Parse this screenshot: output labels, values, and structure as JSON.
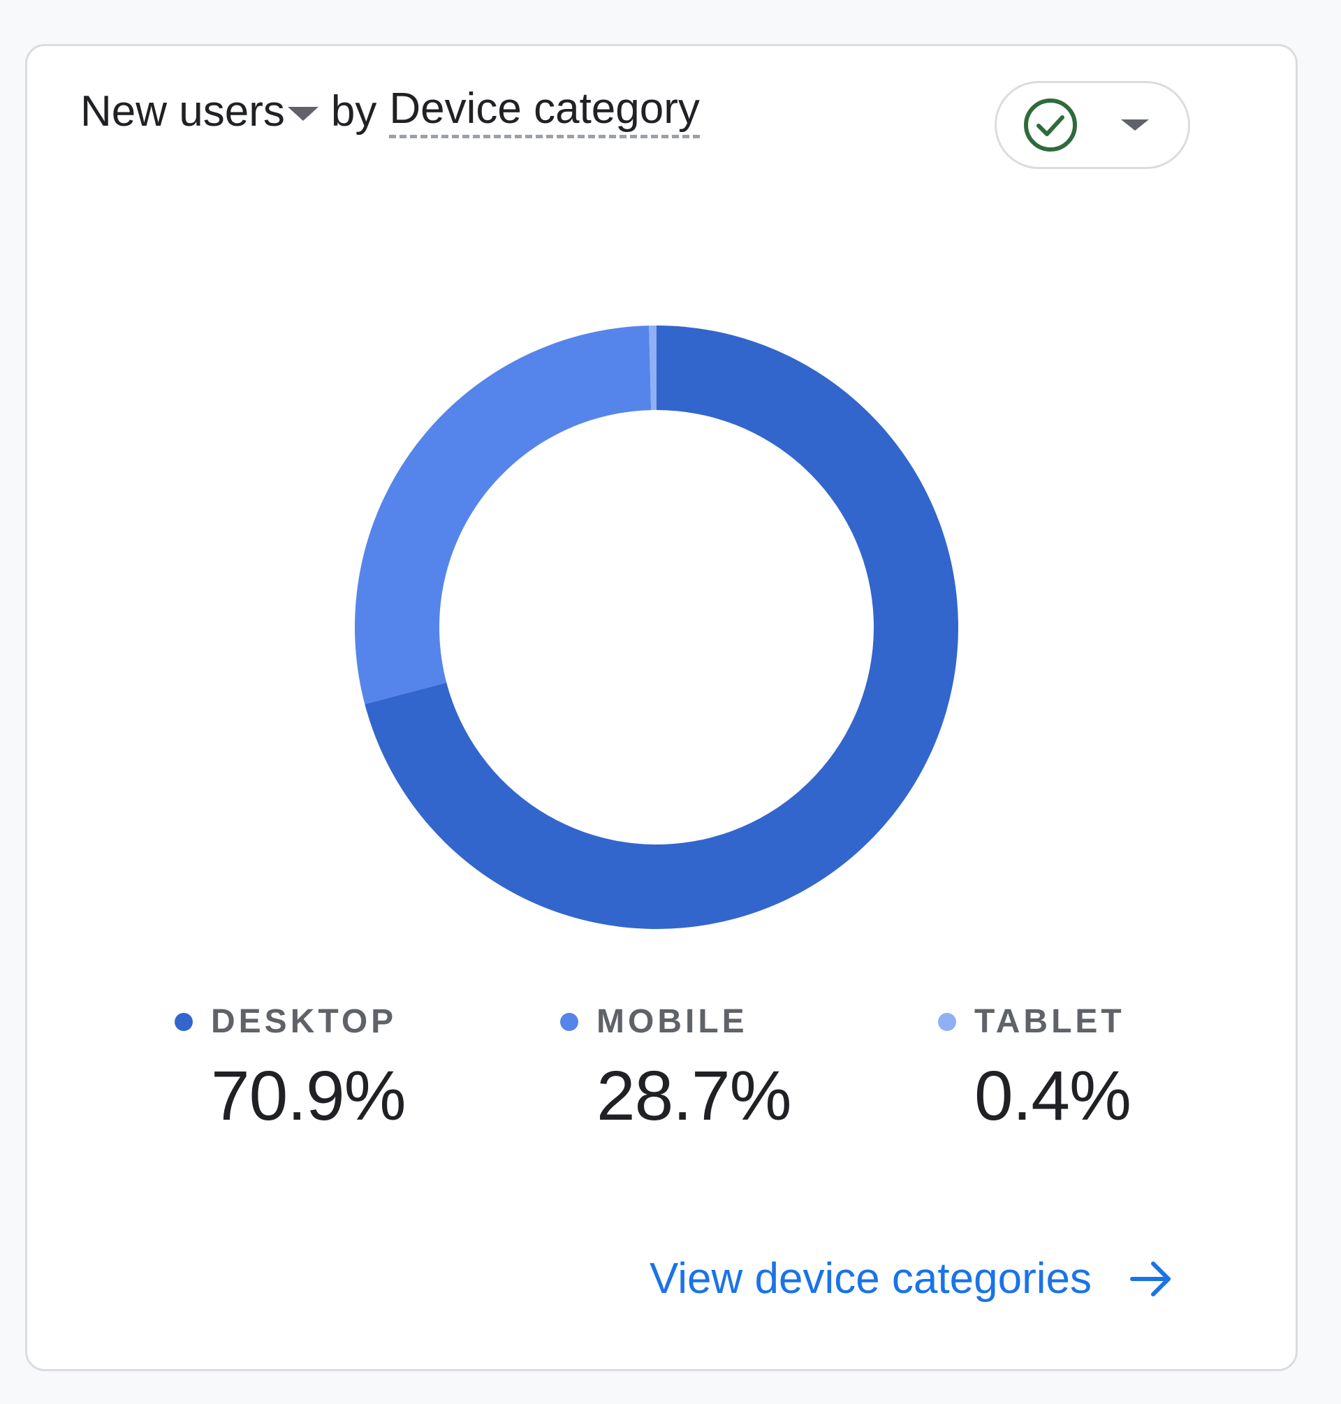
{
  "card": {
    "metric_label": "New users",
    "connector": "by",
    "dimension_label": "Device category",
    "status_icon": "check-circle-icon",
    "status_color": "#2e6b3a",
    "link_label": "View device categories",
    "link_icon": "arrow-right-icon",
    "link_color": "#1a73e8"
  },
  "chart_data": {
    "type": "pie",
    "donut": true,
    "categories": [
      "DESKTOP",
      "MOBILE",
      "TABLET"
    ],
    "values": [
      70.9,
      28.7,
      0.4
    ],
    "colors": [
      "#3366cc",
      "#5585ea",
      "#8fb0f5"
    ]
  },
  "legend": [
    {
      "label": "DESKTOP",
      "value": "70.9%",
      "color": "#3366cc"
    },
    {
      "label": "MOBILE",
      "value": "28.7%",
      "color": "#5585ea"
    },
    {
      "label": "TABLET",
      "value": "0.4%",
      "color": "#8fb0f5"
    }
  ]
}
